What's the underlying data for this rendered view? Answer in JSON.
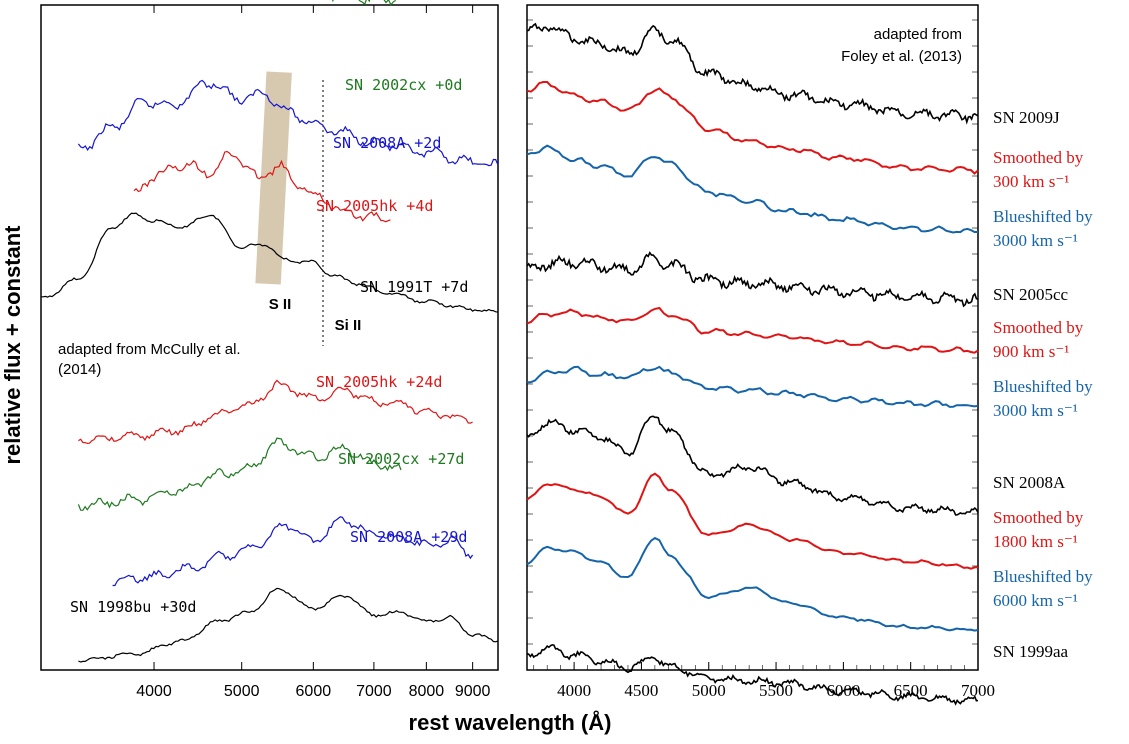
{
  "chart_data": [
    {
      "type": "line",
      "xlabel": "rest wavelength (Å)",
      "ylabel": "relative flux + constant",
      "xscale": "log",
      "xlim": [
        3000,
        9600
      ],
      "xticks": [
        4000,
        5000,
        6000,
        7000,
        8000,
        9000
      ],
      "xtick_labels": [
        "4000",
        "5000",
        "6000",
        "7000",
        "8000",
        "9000"
      ],
      "grid": false,
      "annotations": {
        "source": "adapted from McCully et al. (2014)",
        "feature_s": "S II",
        "feature_si": "Si II"
      },
      "series": [
        {
          "name": "SN 2002cx +0d",
          "color": "#1e7a1e",
          "x": [
            3600,
            3800,
            4000,
            4300,
            4600,
            5000,
            5400,
            5800,
            6200,
            6600,
            7000,
            7400
          ],
          "y": [
            1.0,
            0.92,
            0.84,
            0.76,
            0.68,
            0.6,
            0.54,
            0.49,
            0.45,
            0.42,
            0.39,
            0.36
          ]
        },
        {
          "name": "SN 2008A +2d",
          "color": "#1414d2",
          "x": [
            3300,
            3600,
            3900,
            4200,
            4600,
            5000,
            5300,
            5600,
            6000,
            6400,
            7000,
            8000,
            9000,
            9600
          ],
          "y": [
            0.4,
            0.55,
            0.72,
            0.7,
            0.85,
            0.74,
            0.78,
            0.66,
            0.58,
            0.52,
            0.45,
            0.38,
            0.32,
            0.3
          ]
        },
        {
          "name": "SN 2005hk +4d",
          "color": "#e01414",
          "x": [
            3800,
            4000,
            4300,
            4600,
            4900,
            5200,
            5500,
            5800,
            6100,
            6500,
            7000,
            7300
          ],
          "y": [
            0.55,
            0.72,
            0.82,
            0.76,
            0.92,
            0.7,
            0.8,
            0.62,
            0.52,
            0.4,
            0.34,
            0.32
          ]
        },
        {
          "name": "SN 1991T +7d",
          "color": "#000000",
          "x": [
            3000,
            3300,
            3600,
            3800,
            4000,
            4300,
            4600,
            5000,
            5300,
            5600,
            6000,
            6300,
            6700,
            7200,
            8000,
            9000,
            9600
          ],
          "y": [
            0.3,
            0.45,
            0.85,
            0.95,
            0.9,
            0.85,
            0.95,
            0.7,
            0.72,
            0.6,
            0.58,
            0.48,
            0.42,
            0.35,
            0.28,
            0.22,
            0.2
          ]
        },
        {
          "name": "SN 2005hk +24d",
          "color": "#e01414",
          "x": [
            3300,
            3800,
            4300,
            4700,
            5100,
            5500,
            6000,
            6500,
            7000,
            7500,
            8000,
            8500,
            9000
          ],
          "y": [
            0.2,
            0.24,
            0.3,
            0.45,
            0.55,
            0.75,
            0.62,
            0.7,
            0.58,
            0.55,
            0.48,
            0.45,
            0.38
          ]
        },
        {
          "name": "SN 2002cx +27d",
          "color": "#1e7a1e",
          "x": [
            3300,
            3800,
            4300,
            4700,
            5100,
            5500,
            6000,
            6500,
            7000,
            7500
          ],
          "y": [
            0.2,
            0.25,
            0.35,
            0.5,
            0.58,
            0.82,
            0.68,
            0.76,
            0.62,
            0.55
          ]
        },
        {
          "name": "SN 2008A +29d",
          "color": "#1414d2",
          "x": [
            3600,
            4000,
            4400,
            4800,
            5200,
            5600,
            6000,
            6500,
            7000,
            7500,
            8000,
            8500,
            9000
          ],
          "y": [
            0.18,
            0.24,
            0.32,
            0.45,
            0.55,
            0.75,
            0.6,
            0.8,
            0.65,
            0.62,
            0.55,
            0.6,
            0.45
          ]
        },
        {
          "name": "SN 1998bu +30d",
          "color": "#000000",
          "x": [
            3300,
            3800,
            4300,
            4700,
            5100,
            5500,
            6000,
            6500,
            7000,
            7500,
            8000,
            8500,
            9000,
            9600
          ],
          "y": [
            0.15,
            0.2,
            0.3,
            0.45,
            0.52,
            0.7,
            0.55,
            0.65,
            0.5,
            0.52,
            0.45,
            0.48,
            0.35,
            0.3
          ]
        }
      ]
    },
    {
      "type": "line",
      "xlabel": "rest wavelength (Å)",
      "ylabel": "relative flux + constant",
      "xlim": [
        3650,
        7000
      ],
      "xticks": [
        4000,
        4500,
        5000,
        5500,
        6000,
        6500,
        7000
      ],
      "xtick_labels": [
        "4000",
        "4500",
        "5000",
        "5500",
        "6000",
        "6500",
        "7000"
      ],
      "grid": false,
      "annotations": {
        "source_line1": "adapted from",
        "source_line2": "Foley et al. (2013)"
      },
      "series": [
        {
          "name": "SN 2009J",
          "color": "#000000",
          "x": [
            3650,
            3800,
            4000,
            4200,
            4400,
            4600,
            4700,
            5000,
            5300,
            5600,
            6000,
            6500,
            7000
          ],
          "y": [
            0.9,
            0.95,
            0.85,
            0.8,
            0.72,
            0.9,
            0.85,
            0.55,
            0.45,
            0.38,
            0.3,
            0.22,
            0.2
          ]
        },
        {
          "label_line1": "Smoothed by",
          "label_line2": "300 km s⁻¹",
          "color": "#e01414",
          "x": [
            3650,
            3800,
            4000,
            4200,
            4400,
            4600,
            4700,
            5000,
            5300,
            5600,
            6000,
            6500,
            7000
          ],
          "y": [
            0.85,
            0.9,
            0.8,
            0.75,
            0.68,
            0.85,
            0.8,
            0.52,
            0.42,
            0.36,
            0.28,
            0.2,
            0.18
          ]
        },
        {
          "label_line1": "Blueshifted by",
          "label_line2": "3000 km s⁻¹",
          "color": "#1464aa",
          "x": [
            3650,
            3800,
            4000,
            4200,
            4400,
            4600,
            4700,
            5000,
            5300,
            5600,
            6000,
            6500,
            7000
          ],
          "y": [
            0.8,
            0.85,
            0.75,
            0.7,
            0.62,
            0.78,
            0.72,
            0.48,
            0.4,
            0.32,
            0.25,
            0.18,
            0.15
          ]
        },
        {
          "name": "SN 2005cc",
          "color": "#000000",
          "x": [
            3650,
            3800,
            4000,
            4200,
            4400,
            4600,
            4700,
            5000,
            5300,
            5600,
            6000,
            6500,
            7000
          ],
          "y": [
            0.55,
            0.6,
            0.62,
            0.58,
            0.55,
            0.65,
            0.6,
            0.45,
            0.42,
            0.4,
            0.35,
            0.3,
            0.28
          ]
        },
        {
          "label_line1": "Smoothed by",
          "label_line2": "900 km s⁻¹",
          "color": "#e01414",
          "x": [
            3650,
            3800,
            4000,
            4200,
            4400,
            4600,
            4700,
            5000,
            5300,
            5600,
            6000,
            6500,
            7000
          ],
          "y": [
            0.5,
            0.58,
            0.6,
            0.55,
            0.52,
            0.62,
            0.58,
            0.42,
            0.4,
            0.37,
            0.32,
            0.27,
            0.25
          ]
        },
        {
          "label_line1": "Blueshifted by",
          "label_line2": "3000 km s⁻¹",
          "color": "#1464aa",
          "x": [
            3650,
            3800,
            4000,
            4200,
            4400,
            4600,
            4700,
            5000,
            5300,
            5600,
            6000,
            6500,
            7000
          ],
          "y": [
            0.45,
            0.52,
            0.55,
            0.5,
            0.48,
            0.58,
            0.52,
            0.38,
            0.36,
            0.33,
            0.28,
            0.24,
            0.22
          ]
        },
        {
          "name": "SN 2008A",
          "color": "#000000",
          "x": [
            3650,
            3800,
            4000,
            4200,
            4400,
            4600,
            4700,
            5000,
            5300,
            5600,
            6000,
            6500,
            7000
          ],
          "y": [
            0.75,
            0.85,
            0.8,
            0.75,
            0.65,
            0.9,
            0.8,
            0.5,
            0.55,
            0.45,
            0.35,
            0.28,
            0.25
          ]
        },
        {
          "label_line1": "Smoothed by",
          "label_line2": "1800 km s⁻¹",
          "color": "#e01414",
          "x": [
            3650,
            3800,
            4000,
            4200,
            4400,
            4600,
            4700,
            5000,
            5300,
            5600,
            6000,
            6500,
            7000
          ],
          "y": [
            0.7,
            0.82,
            0.78,
            0.72,
            0.6,
            0.88,
            0.78,
            0.45,
            0.52,
            0.42,
            0.32,
            0.26,
            0.22
          ]
        },
        {
          "label_line1": "Blueshifted by",
          "label_line2": "6000 km s⁻¹",
          "color": "#1464aa",
          "x": [
            3650,
            3800,
            4000,
            4200,
            4400,
            4600,
            4700,
            5000,
            5300,
            5600,
            6000,
            6500,
            7000
          ],
          "y": [
            0.65,
            0.75,
            0.72,
            0.65,
            0.55,
            0.82,
            0.7,
            0.42,
            0.48,
            0.38,
            0.28,
            0.22,
            0.2
          ]
        },
        {
          "name": "SN 1999aa",
          "color": "#000000",
          "x": [
            3650,
            3800,
            4000,
            4200,
            4400,
            4600,
            4700,
            5000,
            5300,
            5600,
            6000,
            6500,
            7000
          ],
          "y": [
            0.5,
            0.55,
            0.5,
            0.45,
            0.4,
            0.48,
            0.42,
            0.32,
            0.3,
            0.28,
            0.22,
            0.18,
            0.15
          ]
        }
      ]
    }
  ]
}
